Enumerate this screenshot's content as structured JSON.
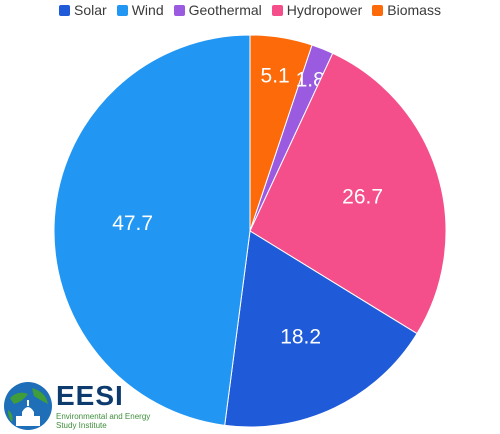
{
  "chart_data": {
    "type": "pie",
    "categories": [
      "Solar",
      "Wind",
      "Geothermal",
      "Hydropower",
      "Biomass"
    ],
    "slices_clockwise_from_top": [
      "Biomass",
      "Geothermal",
      "Hydropower",
      "Solar",
      "Wind"
    ],
    "values": {
      "Solar": 18.2,
      "Wind": 47.7,
      "Geothermal": 1.8,
      "Hydropower": 26.7,
      "Biomass": 5.1
    },
    "labels": {
      "Solar": "18.2",
      "Wind": "47.7",
      "Geothermal": "1.8",
      "Hydropower": "26.7",
      "Biomass": "5.1"
    },
    "colors": {
      "Solar": "#1f5ad8",
      "Wind": "#2196f3",
      "Geothermal": "#9a5be0",
      "Hydropower": "#f44f8a",
      "Biomass": "#fd6a0a"
    },
    "legend_position": "top"
  },
  "logo": {
    "main": "EESI",
    "sub": "Environmental and Energy Study Institute"
  }
}
